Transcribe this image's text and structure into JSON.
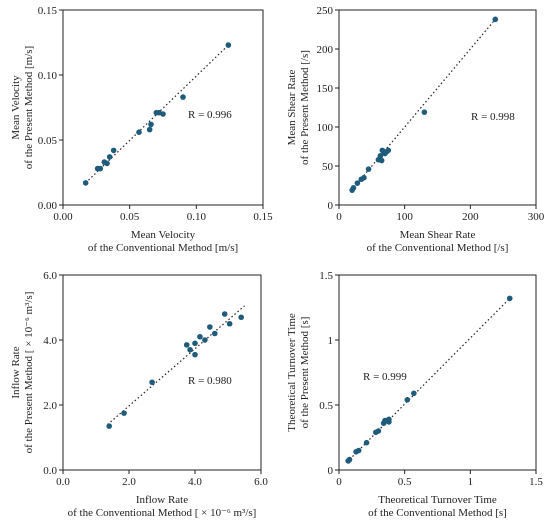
{
  "chart_data": [
    {
      "type": "scatter",
      "xlabel_lines": [
        "Mean Velocity",
        "of the Conventional Method [m/s]"
      ],
      "ylabel_lines": [
        "Mean Velocity",
        "of the Present Method [m/s]"
      ],
      "xlim": [
        0,
        0.15
      ],
      "ylim": [
        0,
        0.15
      ],
      "xticks": [
        "0.00",
        "0.05",
        "0.10",
        "0.15"
      ],
      "yticks": [
        "0.00",
        "0.05",
        "0.10",
        "0.15"
      ],
      "annotation": "R = 0.996",
      "points": [
        [
          0.017,
          0.017
        ],
        [
          0.026,
          0.028
        ],
        [
          0.028,
          0.028
        ],
        [
          0.031,
          0.033
        ],
        [
          0.033,
          0.032
        ],
        [
          0.035,
          0.037
        ],
        [
          0.038,
          0.042
        ],
        [
          0.057,
          0.056
        ],
        [
          0.065,
          0.058
        ],
        [
          0.066,
          0.062
        ],
        [
          0.07,
          0.071
        ],
        [
          0.072,
          0.071
        ],
        [
          0.075,
          0.07
        ],
        [
          0.09,
          0.083
        ],
        [
          0.124,
          0.123
        ]
      ],
      "fit": [
        [
          0.017,
          0.017
        ],
        [
          0.124,
          0.123
        ]
      ]
    },
    {
      "type": "scatter",
      "xlabel_lines": [
        "Mean Shear Rate",
        "of the Conventional Method [/s]"
      ],
      "ylabel_lines": [
        "Mean Shear Rate",
        "of the Present Method [/s]"
      ],
      "xlim": [
        0,
        300
      ],
      "ylim": [
        0,
        250
      ],
      "xticks": [
        "0",
        "100",
        "200",
        "300"
      ],
      "yticks": [
        "0",
        "50",
        "100",
        "150",
        "200",
        "250"
      ],
      "annotation": "R = 0.998",
      "points": [
        [
          20,
          19
        ],
        [
          22,
          22
        ],
        [
          28,
          28
        ],
        [
          34,
          33
        ],
        [
          38,
          35
        ],
        [
          45,
          46
        ],
        [
          60,
          58
        ],
        [
          63,
          63
        ],
        [
          65,
          57
        ],
        [
          66,
          70
        ],
        [
          70,
          66
        ],
        [
          72,
          68
        ],
        [
          75,
          70
        ],
        [
          130,
          119
        ],
        [
          238,
          238
        ]
      ],
      "fit": [
        [
          18,
          18
        ],
        [
          238,
          238
        ]
      ]
    },
    {
      "type": "scatter",
      "xlabel_lines": [
        "Inflow Rate",
        "of the Conventional Method [ × 10⁻⁶ m³/s]"
      ],
      "ylabel_lines": [
        "Inflow Rate",
        "of the Present Method [ × 10⁻⁶ m³/s]"
      ],
      "xlim": [
        0,
        6
      ],
      "ylim": [
        0,
        6
      ],
      "xticks": [
        "0.0",
        "2.0",
        "4.0",
        "6.0"
      ],
      "yticks": [
        "0.0",
        "2.0",
        "4.0",
        "6.0"
      ],
      "annotation": "R = 0.980",
      "points": [
        [
          1.4,
          1.35
        ],
        [
          1.85,
          1.75
        ],
        [
          2.7,
          2.7
        ],
        [
          3.75,
          3.85
        ],
        [
          3.85,
          3.7
        ],
        [
          4.0,
          3.55
        ],
        [
          4.0,
          3.9
        ],
        [
          4.15,
          4.1
        ],
        [
          4.3,
          4.0
        ],
        [
          4.45,
          4.4
        ],
        [
          4.6,
          4.2
        ],
        [
          4.9,
          4.8
        ],
        [
          5.05,
          4.5
        ],
        [
          5.4,
          4.7
        ]
      ],
      "fit": [
        [
          1.35,
          1.4
        ],
        [
          5.5,
          5.05
        ]
      ]
    },
    {
      "type": "scatter",
      "xlabel_lines": [
        "Theoretical Turnover Time",
        "of the Conventional Method [s]"
      ],
      "ylabel_lines": [
        "Theoretical Turnover Time",
        "of the Present Method [s]"
      ],
      "xlim": [
        0,
        1.5
      ],
      "ylim": [
        0,
        1.5
      ],
      "xticks": [
        "0",
        "0.5",
        "1",
        "1.5"
      ],
      "yticks": [
        "0",
        "0.5",
        "1",
        "1.5"
      ],
      "annotation": "R = 0.999",
      "points": [
        [
          0.07,
          0.07
        ],
        [
          0.08,
          0.08
        ],
        [
          0.13,
          0.14
        ],
        [
          0.15,
          0.15
        ],
        [
          0.21,
          0.21
        ],
        [
          0.28,
          0.29
        ],
        [
          0.3,
          0.3
        ],
        [
          0.34,
          0.36
        ],
        [
          0.35,
          0.38
        ],
        [
          0.38,
          0.39
        ],
        [
          0.38,
          0.37
        ],
        [
          0.52,
          0.54
        ],
        [
          0.57,
          0.59
        ],
        [
          1.3,
          1.32
        ]
      ],
      "fit": [
        [
          0.06,
          0.06
        ],
        [
          1.3,
          1.32
        ]
      ]
    }
  ]
}
